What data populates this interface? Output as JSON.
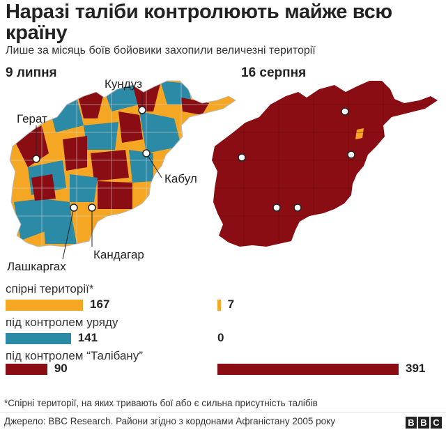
{
  "title": "Наразі таліби контролюють майже всю країну",
  "subtitle": "Лише за місяць боїв бойовики захопили величезні території",
  "colors": {
    "contested": "#f5a623",
    "government": "#2b8aa6",
    "taliban": "#8b0d14",
    "border": "#d9d9d9"
  },
  "maps": [
    {
      "date": "9 липня",
      "cities": [
        {
          "name": "Кундуз",
          "id": "kunduz"
        },
        {
          "name": "Герат",
          "id": "herat"
        },
        {
          "name": "Кабул",
          "id": "kabul"
        },
        {
          "name": "Лашкаргах",
          "id": "lashkargah"
        },
        {
          "name": "Кандагар",
          "id": "kandahar"
        }
      ]
    },
    {
      "date": "16 серпня"
    }
  ],
  "chart_data": {
    "type": "bar",
    "categories": [
      "спірні території*",
      "під контролем уряду",
      "під контролем “Талібану”"
    ],
    "series": [
      {
        "name": "9 липня",
        "values": [
          167,
          141,
          90
        ]
      },
      {
        "name": "16 серпня",
        "values": [
          7,
          0,
          391
        ]
      }
    ]
  },
  "footnote": "*Спірні території, на яких тривають бої або є сильна присутність талібів",
  "source": "Джерело: BBC Research. Райони згідно з кордонами Афганістану 2005 року",
  "logo": [
    "B",
    "B",
    "C"
  ]
}
